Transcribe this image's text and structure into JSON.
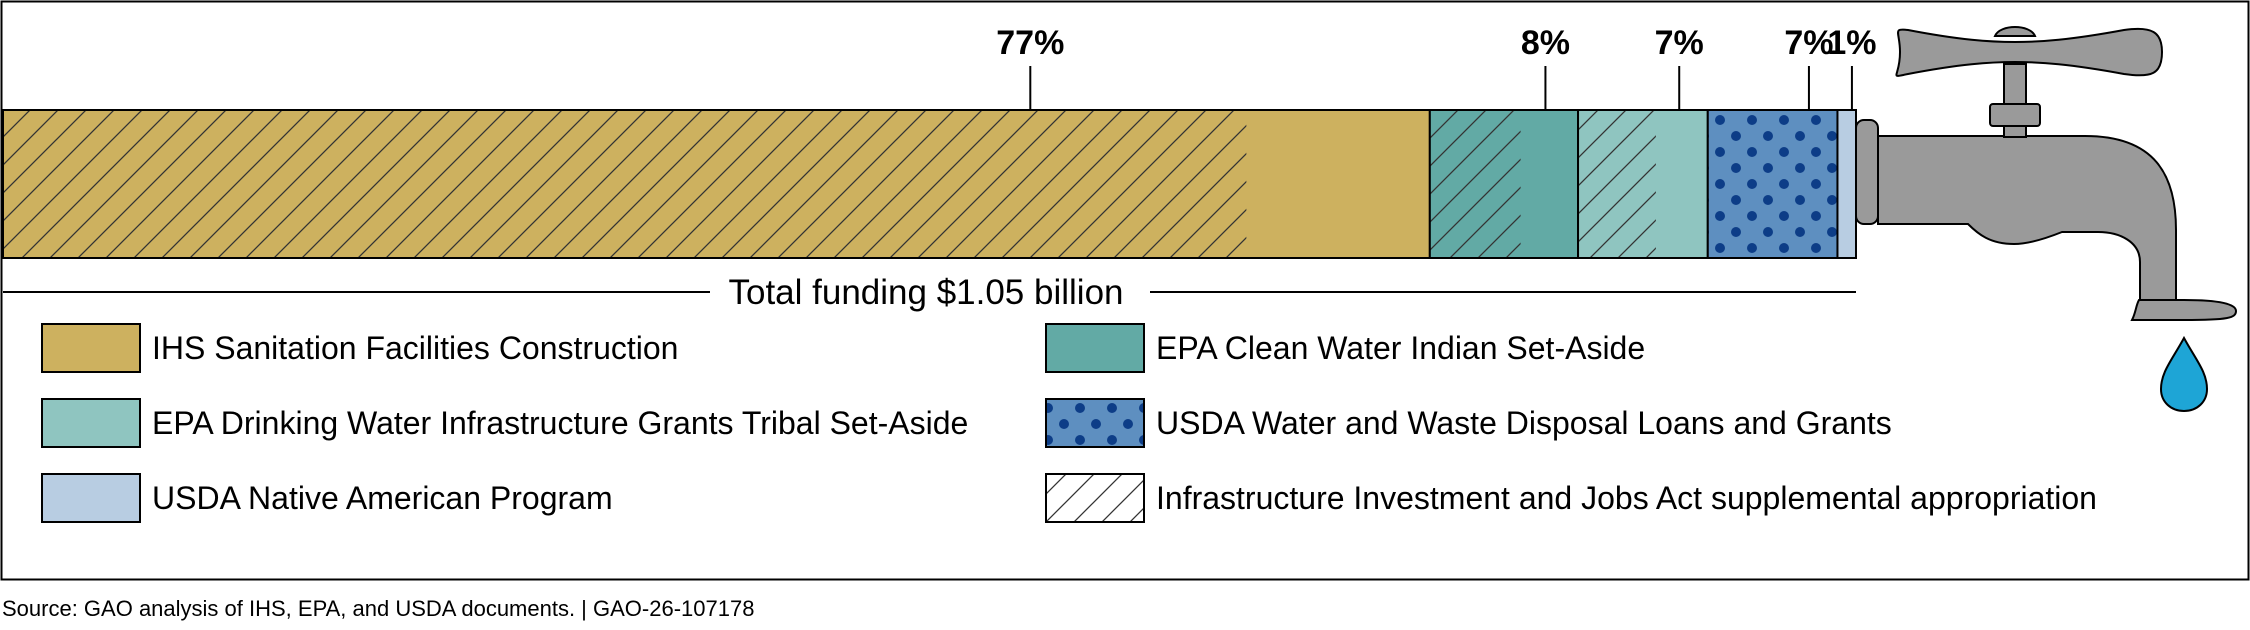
{
  "chart_data": {
    "type": "bar",
    "orientation": "horizontal-stacked",
    "total_label": "Total funding $1.05 billion",
    "colors": {
      "ihs": "#cdb15f",
      "epa_cwisa": "#62aaa5",
      "epa_dwig": "#8fc5c0",
      "usda_wwd": "#5e8fc0",
      "usda_nap": "#b8cde2",
      "iija": "#ffffff",
      "faucet": "#9a9a9a",
      "water": "#1ea5d6"
    },
    "segments": [
      {
        "key": "ihs",
        "value_pct": 77,
        "label": "77%",
        "iija_share_pct": 67.1
      },
      {
        "key": "epa_cwisa",
        "value_pct": 8,
        "label": "8%",
        "iija_share_pct": 4.9
      },
      {
        "key": "epa_dwig",
        "value_pct": 7,
        "label": "7%",
        "iija_share_pct": 4.2
      },
      {
        "key": "usda_wwd",
        "value_pct": 7,
        "label": "7%",
        "iija_share_pct": 0
      },
      {
        "key": "usda_nap",
        "value_pct": 1,
        "label": "1%",
        "iija_share_pct": 0
      }
    ],
    "legend": [
      {
        "key": "ihs",
        "label": "IHS Sanitation Facilities Construction"
      },
      {
        "key": "epa_cwisa",
        "label": "EPA Clean Water Indian Set-Aside"
      },
      {
        "key": "epa_dwig",
        "label": "EPA Drinking Water Infrastructure Grants Tribal Set-Aside"
      },
      {
        "key": "usda_wwd",
        "label": "USDA Water and Waste Disposal Loans and Grants"
      },
      {
        "key": "usda_nap",
        "label": "USDA Native American Program"
      },
      {
        "key": "iija",
        "label": "Infrastructure Investment and Jobs Act supplemental appropriation"
      }
    ]
  },
  "source_note": "Source: GAO analysis of IHS, EPA, and USDA documents.  |  GAO-26-107178"
}
